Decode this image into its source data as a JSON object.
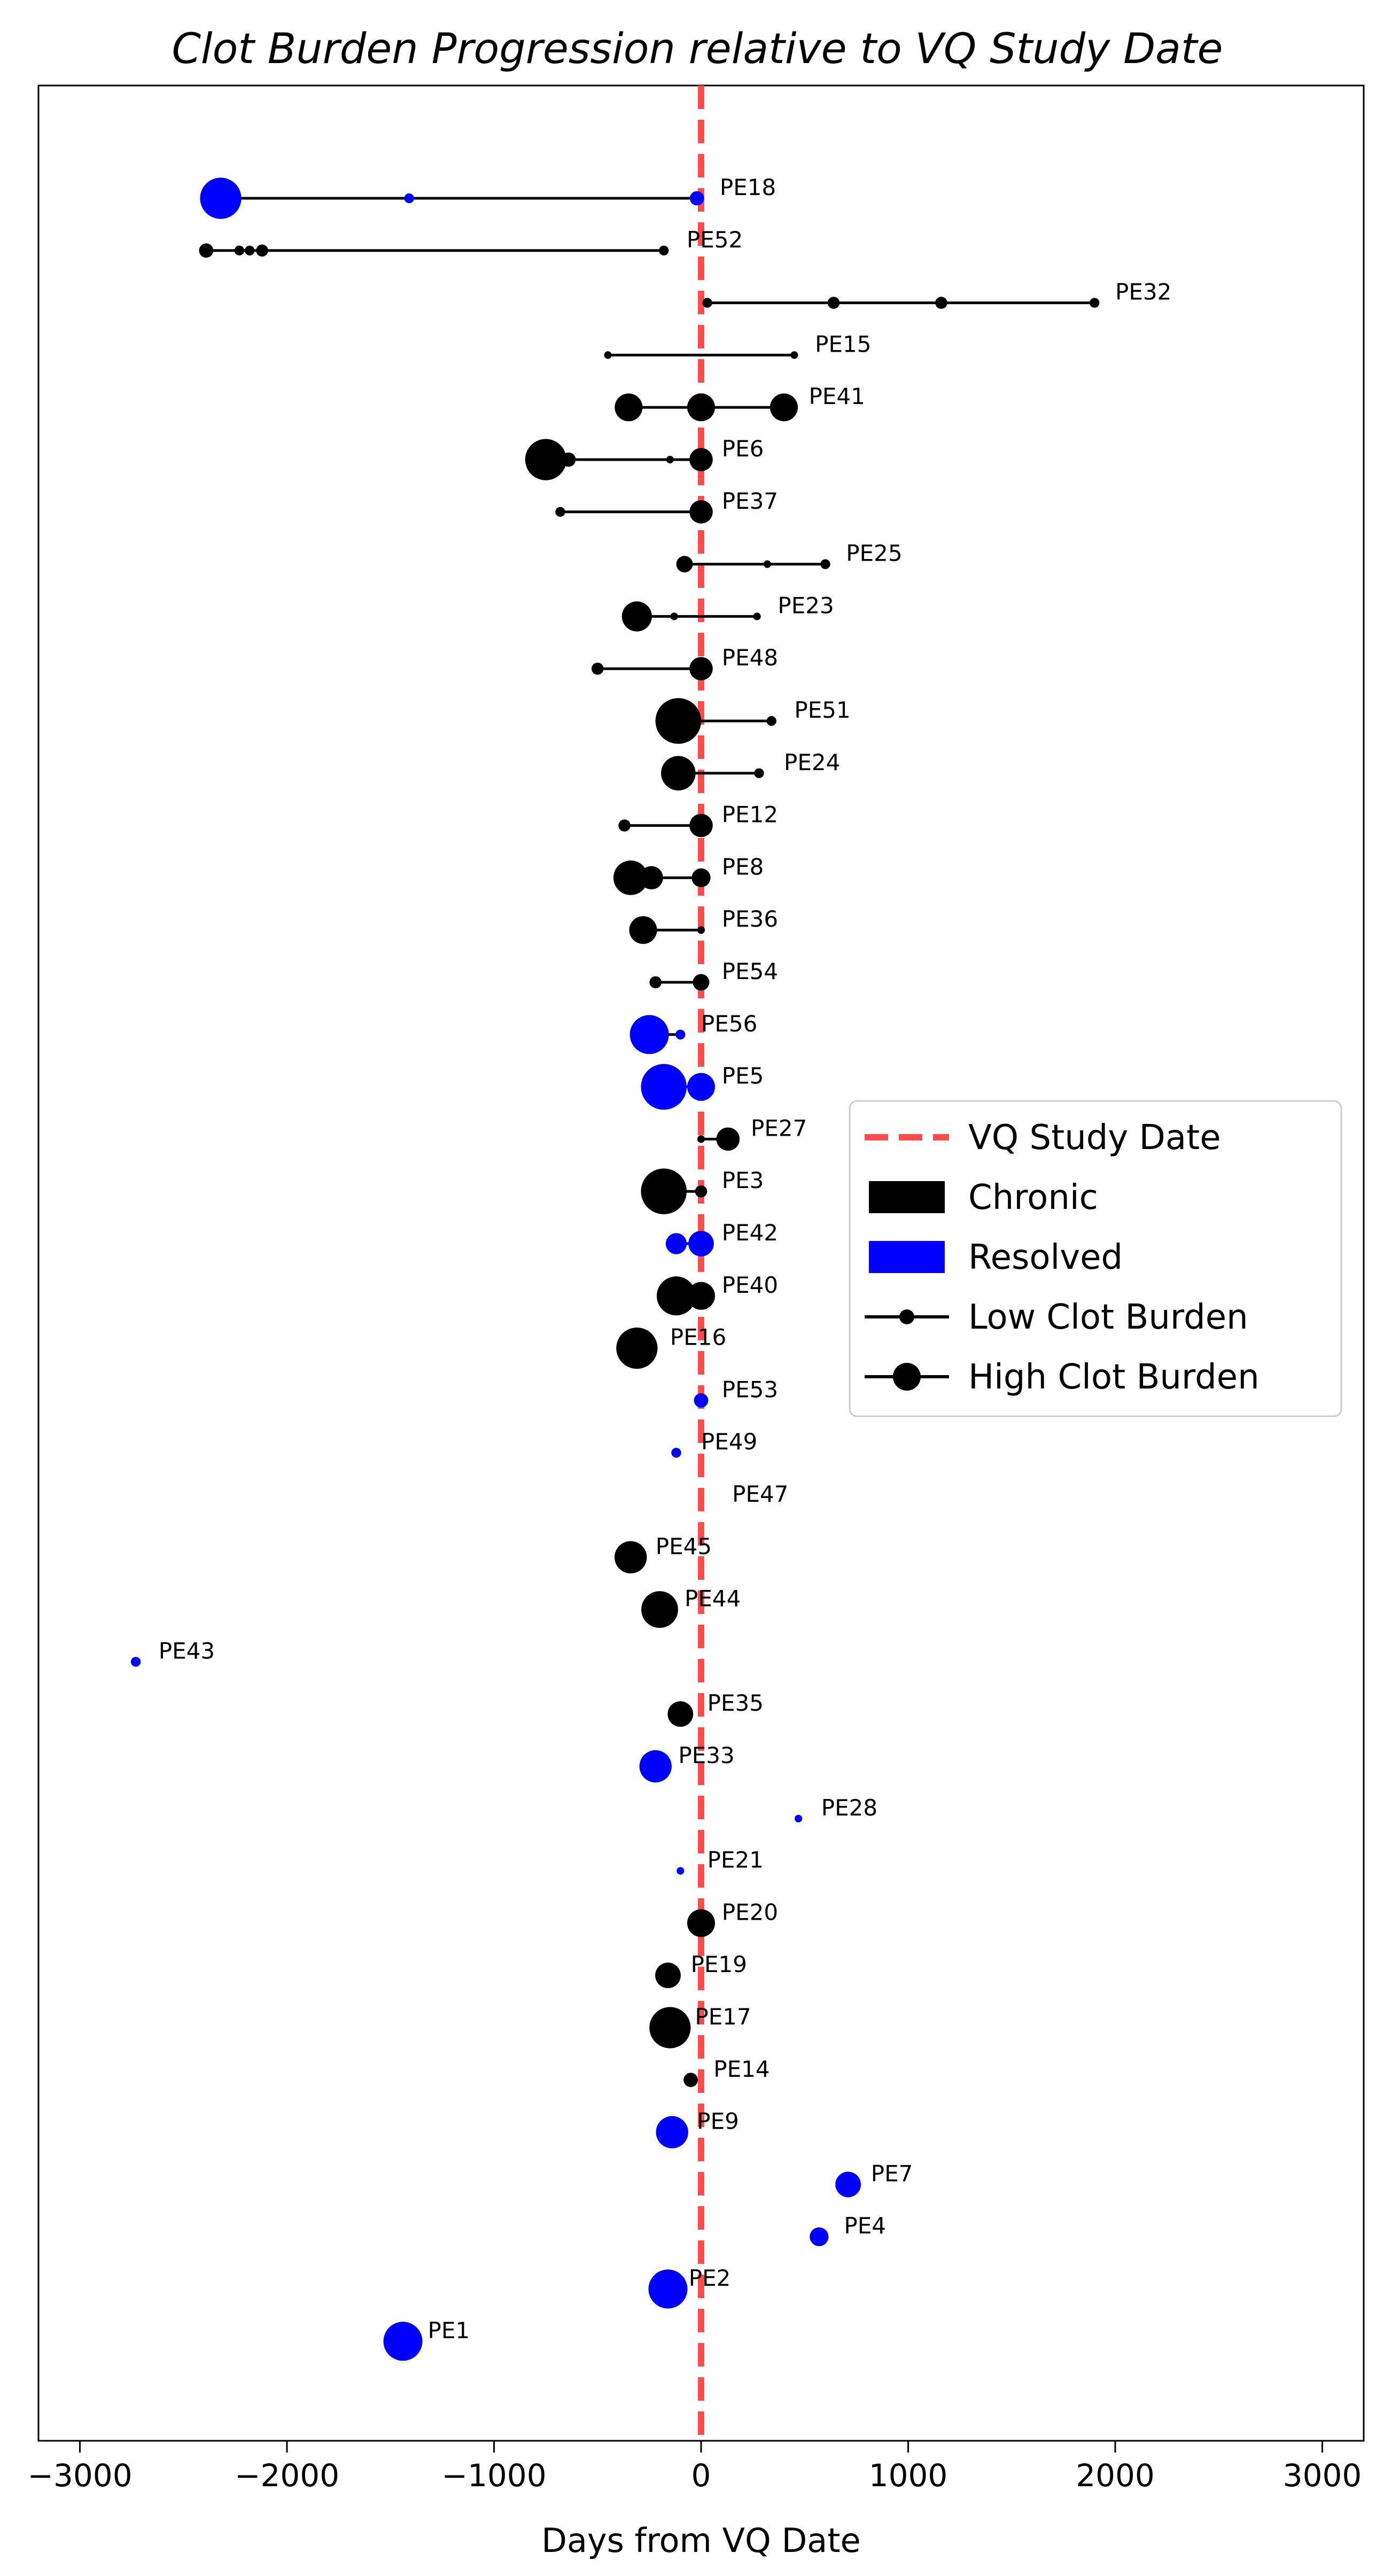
{
  "chart_data": {
    "type": "scatter",
    "title": "Clot Burden Progression relative to VQ Study Date",
    "xlabel": "Days from VQ Date",
    "ylabel": "",
    "xlim": [
      -3200,
      3200
    ],
    "xticks": [
      -3000,
      -2000,
      -1000,
      0,
      1000,
      2000,
      3000
    ],
    "xtick_labels": [
      "−3000",
      "−2000",
      "−1000",
      "0",
      "1000",
      "2000",
      "3000"
    ],
    "grid": false,
    "reference_line": {
      "x": 0,
      "label": "VQ Study Date",
      "color": "#ff4d4d",
      "style": "dashed"
    },
    "legend": {
      "placement": "center-right",
      "entries": [
        {
          "label": "VQ Study Date",
          "kind": "dashed-line",
          "color": "#ff4d4d"
        },
        {
          "label": "Chronic",
          "kind": "patch",
          "color": "#000000"
        },
        {
          "label": "Resolved",
          "kind": "patch",
          "color": "#0000ff"
        },
        {
          "label": "Low Clot Burden",
          "kind": "line-marker-small",
          "color": "#000000"
        },
        {
          "label": "High Clot Burden",
          "kind": "line-marker-large",
          "color": "#000000"
        }
      ]
    },
    "colors": {
      "chronic": "#000000",
      "resolved": "#0000ff"
    },
    "patients": [
      {
        "id": "PE18",
        "label_x": 90,
        "points": [
          {
            "day": -2320,
            "burden": 16,
            "status": "resolved"
          },
          {
            "day": -1410,
            "burden": 2,
            "status": "resolved"
          },
          {
            "day": -20,
            "burden": 4,
            "status": "resolved"
          }
        ]
      },
      {
        "id": "PE52",
        "label_x": -70,
        "points": [
          {
            "day": -2390,
            "burden": 4,
            "status": "chronic"
          },
          {
            "day": -2230,
            "burden": 2,
            "status": "chronic"
          },
          {
            "day": -2180,
            "burden": 2,
            "status": "chronic"
          },
          {
            "day": -2120,
            "burden": 3,
            "status": "chronic"
          },
          {
            "day": -180,
            "burden": 2,
            "status": "chronic"
          }
        ]
      },
      {
        "id": "PE32",
        "label_x": 2000,
        "points": [
          {
            "day": 30,
            "burden": 2,
            "status": "chronic"
          },
          {
            "day": 640,
            "burden": 3,
            "status": "chronic"
          },
          {
            "day": 1160,
            "burden": 3,
            "status": "chronic"
          },
          {
            "day": 1900,
            "burden": 2,
            "status": "chronic"
          }
        ]
      },
      {
        "id": "PE15",
        "label_x": 550,
        "points": [
          {
            "day": -450,
            "burden": 1,
            "status": "chronic"
          },
          {
            "day": 450,
            "burden": 1,
            "status": "chronic"
          }
        ]
      },
      {
        "id": "PE41",
        "label_x": 520,
        "points": [
          {
            "day": -350,
            "burden": 10,
            "status": "chronic"
          },
          {
            "day": 0,
            "burden": 10,
            "status": "chronic"
          },
          {
            "day": 400,
            "burden": 10,
            "status": "chronic"
          }
        ]
      },
      {
        "id": "PE6",
        "label_x": 100,
        "points": [
          {
            "day": -750,
            "burden": 16,
            "status": "chronic"
          },
          {
            "day": -640,
            "burden": 4,
            "status": "chronic"
          },
          {
            "day": -150,
            "burden": 1,
            "status": "chronic"
          },
          {
            "day": 0,
            "burden": 8,
            "status": "chronic"
          }
        ]
      },
      {
        "id": "PE37",
        "label_x": 100,
        "points": [
          {
            "day": -680,
            "burden": 2,
            "status": "chronic"
          },
          {
            "day": 0,
            "burden": 8,
            "status": "chronic"
          }
        ]
      },
      {
        "id": "PE25",
        "label_x": 700,
        "points": [
          {
            "day": -80,
            "burden": 5,
            "status": "chronic"
          },
          {
            "day": 320,
            "burden": 1,
            "status": "chronic"
          },
          {
            "day": 600,
            "burden": 2,
            "status": "chronic"
          }
        ]
      },
      {
        "id": "PE23",
        "label_x": 370,
        "points": [
          {
            "day": -310,
            "burden": 11,
            "status": "chronic"
          },
          {
            "day": -130,
            "burden": 1,
            "status": "chronic"
          },
          {
            "day": 270,
            "burden": 1,
            "status": "chronic"
          }
        ]
      },
      {
        "id": "PE48",
        "label_x": 100,
        "points": [
          {
            "day": -500,
            "burden": 3,
            "status": "chronic"
          },
          {
            "day": 0,
            "burden": 8,
            "status": "chronic"
          }
        ]
      },
      {
        "id": "PE51",
        "label_x": 450,
        "points": [
          {
            "day": -110,
            "burden": 18,
            "status": "chronic"
          },
          {
            "day": 340,
            "burden": 2,
            "status": "chronic"
          }
        ]
      },
      {
        "id": "PE24",
        "label_x": 400,
        "points": [
          {
            "day": -110,
            "burden": 13,
            "status": "chronic"
          },
          {
            "day": 280,
            "burden": 2,
            "status": "chronic"
          }
        ]
      },
      {
        "id": "PE12",
        "label_x": 100,
        "points": [
          {
            "day": -370,
            "burden": 3,
            "status": "chronic"
          },
          {
            "day": 0,
            "burden": 8,
            "status": "chronic"
          }
        ]
      },
      {
        "id": "PE8",
        "label_x": 100,
        "points": [
          {
            "day": -340,
            "burden": 13,
            "status": "chronic"
          },
          {
            "day": -240,
            "burden": 8,
            "status": "chronic"
          },
          {
            "day": 0,
            "burden": 6,
            "status": "chronic"
          }
        ]
      },
      {
        "id": "PE36",
        "label_x": 100,
        "points": [
          {
            "day": -280,
            "burden": 10,
            "status": "chronic"
          },
          {
            "day": 0,
            "burden": 1,
            "status": "chronic"
          }
        ]
      },
      {
        "id": "PE54",
        "label_x": 100,
        "points": [
          {
            "day": -220,
            "burden": 3,
            "status": "chronic"
          },
          {
            "day": 0,
            "burden": 5,
            "status": "chronic"
          }
        ]
      },
      {
        "id": "PE56",
        "label_x": 0,
        "points": [
          {
            "day": -250,
            "burden": 15,
            "status": "resolved"
          },
          {
            "day": -100,
            "burden": 2,
            "status": "resolved"
          }
        ]
      },
      {
        "id": "PE5",
        "label_x": 100,
        "points": [
          {
            "day": -180,
            "burden": 18,
            "status": "resolved"
          },
          {
            "day": 0,
            "burden": 10,
            "status": "resolved"
          }
        ]
      },
      {
        "id": "PE27",
        "label_x": 240,
        "points": [
          {
            "day": 0,
            "burden": 1,
            "status": "chronic"
          },
          {
            "day": 130,
            "burden": 8,
            "status": "chronic"
          }
        ]
      },
      {
        "id": "PE3",
        "label_x": 100,
        "points": [
          {
            "day": -180,
            "burden": 18,
            "status": "chronic"
          },
          {
            "day": 0,
            "burden": 3,
            "status": "chronic"
          }
        ]
      },
      {
        "id": "PE42",
        "label_x": 100,
        "points": [
          {
            "day": -120,
            "burden": 7,
            "status": "resolved"
          },
          {
            "day": 0,
            "burden": 9,
            "status": "resolved"
          }
        ]
      },
      {
        "id": "PE40",
        "label_x": 100,
        "points": [
          {
            "day": -120,
            "burden": 15,
            "status": "chronic"
          },
          {
            "day": 0,
            "burden": 10,
            "status": "chronic"
          }
        ]
      },
      {
        "id": "PE16",
        "label_x": -150,
        "points": [
          {
            "day": -310,
            "burden": 16,
            "status": "chronic"
          }
        ]
      },
      {
        "id": "PE53",
        "label_x": 100,
        "points": [
          {
            "day": 0,
            "burden": 4,
            "status": "resolved"
          }
        ]
      },
      {
        "id": "PE49",
        "label_x": 0,
        "points": [
          {
            "day": -120,
            "burden": 2,
            "status": "resolved"
          }
        ]
      },
      {
        "id": "PE47",
        "label_x": 150,
        "points": []
      },
      {
        "id": "PE45",
        "label_x": -220,
        "points": [
          {
            "day": -340,
            "burden": 12,
            "status": "chronic"
          }
        ]
      },
      {
        "id": "PE44",
        "label_x": -80,
        "points": [
          {
            "day": -200,
            "burden": 14,
            "status": "chronic"
          }
        ]
      },
      {
        "id": "PE43",
        "label_x": -2620,
        "points": [
          {
            "day": -2730,
            "burden": 2,
            "status": "resolved"
          }
        ]
      },
      {
        "id": "PE35",
        "label_x": 30,
        "points": [
          {
            "day": -100,
            "burden": 9,
            "status": "chronic"
          }
        ]
      },
      {
        "id": "PE33",
        "label_x": -110,
        "points": [
          {
            "day": -220,
            "burden": 12,
            "status": "resolved"
          }
        ]
      },
      {
        "id": "PE28",
        "label_x": 580,
        "points": [
          {
            "day": 470,
            "burden": 1,
            "status": "resolved"
          }
        ]
      },
      {
        "id": "PE21",
        "label_x": 30,
        "points": [
          {
            "day": -100,
            "burden": 1,
            "status": "resolved"
          }
        ]
      },
      {
        "id": "PE20",
        "label_x": 100,
        "points": [
          {
            "day": 0,
            "burden": 10,
            "status": "chronic"
          }
        ]
      },
      {
        "id": "PE19",
        "label_x": -50,
        "points": [
          {
            "day": -160,
            "burden": 9,
            "status": "chronic"
          }
        ]
      },
      {
        "id": "PE17",
        "label_x": -30,
        "points": [
          {
            "day": -150,
            "burden": 16,
            "status": "chronic"
          }
        ]
      },
      {
        "id": "PE14",
        "label_x": 60,
        "points": [
          {
            "day": -50,
            "burden": 4,
            "status": "chronic"
          }
        ]
      },
      {
        "id": "PE9",
        "label_x": -20,
        "points": [
          {
            "day": -140,
            "burden": 12,
            "status": "resolved"
          }
        ]
      },
      {
        "id": "PE7",
        "label_x": 820,
        "points": [
          {
            "day": 710,
            "burden": 9,
            "status": "resolved"
          }
        ]
      },
      {
        "id": "PE4",
        "label_x": 690,
        "points": [
          {
            "day": 570,
            "burden": 6,
            "status": "resolved"
          }
        ]
      },
      {
        "id": "PE2",
        "label_x": -60,
        "points": [
          {
            "day": -160,
            "burden": 15,
            "status": "resolved"
          }
        ]
      },
      {
        "id": "PE1",
        "label_x": -1320,
        "points": [
          {
            "day": -1440,
            "burden": 15,
            "status": "resolved"
          }
        ]
      }
    ]
  }
}
